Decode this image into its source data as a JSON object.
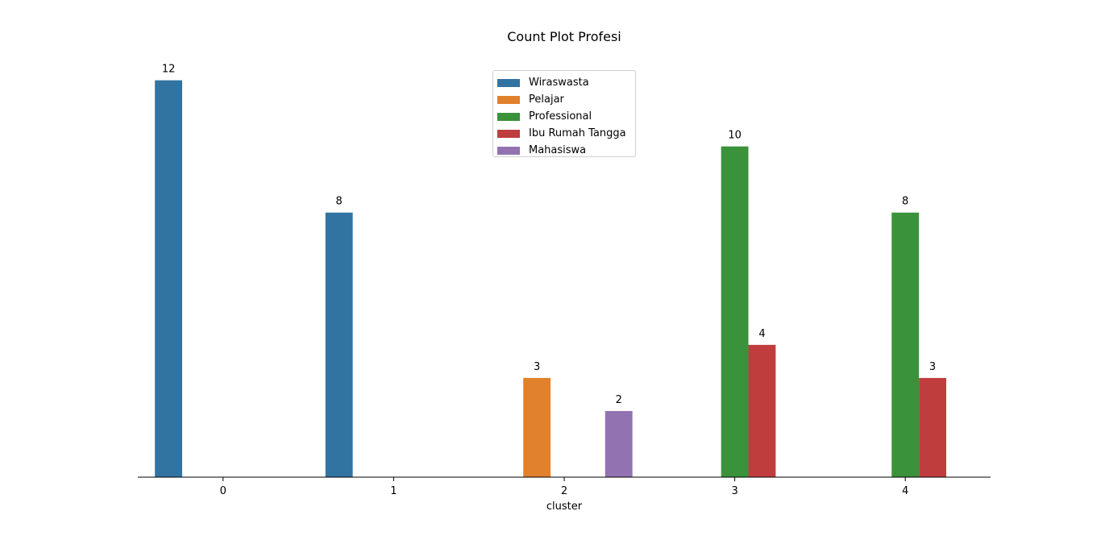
{
  "chart_data": {
    "type": "bar",
    "title": "Count Plot Profesi",
    "xlabel": "cluster",
    "ylabel": "",
    "categories": [
      "0",
      "1",
      "2",
      "3",
      "4"
    ],
    "ylim": [
      0,
      12.6
    ],
    "grid": false,
    "legend_position": "upper-center",
    "series": [
      {
        "name": "Wiraswasta",
        "color": "#3274a1",
        "values": [
          12,
          8,
          null,
          null,
          null
        ]
      },
      {
        "name": "Pelajar",
        "color": "#e1812c",
        "values": [
          null,
          null,
          3,
          null,
          null
        ]
      },
      {
        "name": "Professional",
        "color": "#3a923a",
        "values": [
          null,
          null,
          null,
          10,
          8
        ]
      },
      {
        "name": "Ibu Rumah Tangga",
        "color": "#c03d3e",
        "values": [
          null,
          null,
          null,
          4,
          3
        ]
      },
      {
        "name": "Mahasiswa",
        "color": "#9372b2",
        "values": [
          null,
          null,
          2,
          null,
          null
        ]
      }
    ]
  }
}
